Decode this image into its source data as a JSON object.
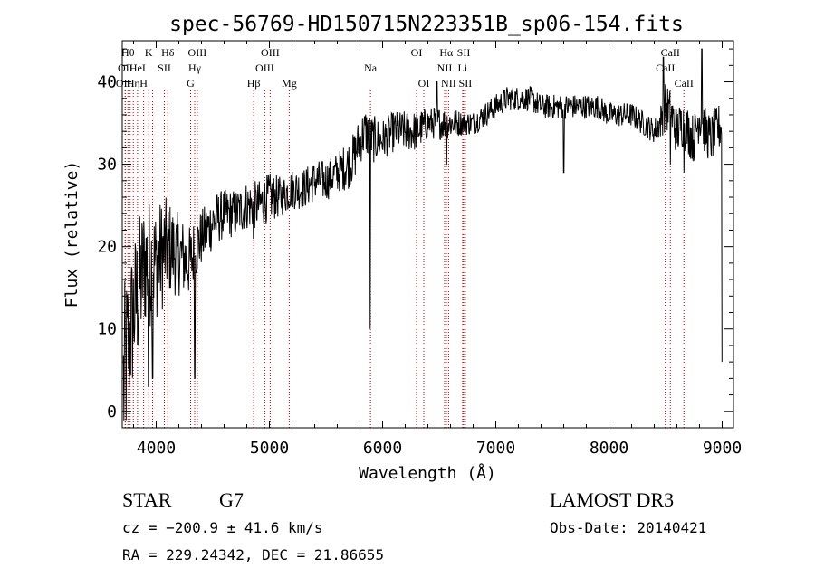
{
  "chart_data": {
    "type": "line",
    "title": "spec-56769-HD150715N223351B_sp06-154.fits",
    "xlabel": "Wavelength (Å)",
    "ylabel": "Flux (relative)",
    "xlim": [
      3700,
      9100
    ],
    "ylim": [
      -2,
      45
    ],
    "xticks": [
      4000,
      5000,
      6000,
      7000,
      8000,
      9000
    ],
    "xtick_labels": [
      "4000",
      "5000",
      "6000",
      "7000",
      "8000",
      "9000"
    ],
    "yticks": [
      0,
      10,
      20,
      30,
      40
    ],
    "ytick_labels": [
      "0",
      "10",
      "20",
      "30",
      "40"
    ],
    "series": [
      {
        "name": "flux",
        "anchors_x": [
          3710,
          3750,
          3800,
          3850,
          3900,
          3950,
          4000,
          4050,
          4100,
          4200,
          4300,
          4350,
          4400,
          4500,
          4600,
          4700,
          4800,
          4900,
          5000,
          5100,
          5200,
          5300,
          5400,
          5500,
          5600,
          5700,
          5750,
          5800,
          5850,
          5900,
          6000,
          6100,
          6200,
          6300,
          6400,
          6500,
          6600,
          6700,
          6800,
          6900,
          7000,
          7100,
          7200,
          7300,
          7400,
          7500,
          7600,
          7700,
          7800,
          7900,
          8000,
          8100,
          8200,
          8300,
          8400,
          8450,
          8500,
          8550,
          8600,
          8650,
          8700,
          8750,
          8800,
          8850,
          8900,
          8950,
          9000
        ],
        "anchors_y": [
          3,
          8,
          12,
          15,
          18,
          18,
          18,
          19,
          20,
          19,
          18,
          20,
          21,
          23,
          24,
          24,
          25,
          25,
          26,
          26,
          27,
          27,
          28,
          28,
          29,
          30,
          31,
          33,
          34,
          33,
          33,
          34,
          34,
          34,
          35,
          35,
          35,
          35,
          35,
          36,
          37,
          38,
          38,
          38,
          37,
          37,
          37,
          37,
          37,
          37,
          36,
          36,
          36,
          35,
          34,
          35,
          37,
          36,
          34,
          35,
          34,
          33,
          36,
          34,
          33,
          34,
          35
        ],
        "noise_amplitude": [
          12,
          10,
          9,
          9,
          8,
          8,
          7,
          7,
          6,
          5,
          4.5,
          4,
          3.5,
          3.5,
          3,
          3,
          3,
          3,
          3,
          2.5,
          2.5,
          2.5,
          2.5,
          2.5,
          2.5,
          3,
          3,
          3,
          3,
          3,
          2.5,
          2.5,
          2.5,
          2.5,
          2,
          2,
          2,
          1.5,
          1.5,
          1.5,
          1.5,
          1.5,
          1.5,
          1.5,
          1.5,
          1.5,
          1.5,
          1.5,
          1.5,
          1.5,
          1.5,
          1.5,
          1.5,
          1.5,
          1.5,
          2,
          3,
          3,
          3,
          3,
          3,
          3,
          3,
          3,
          3,
          3,
          3
        ],
        "dips": [
          {
            "x": 3933,
            "y": 3
          },
          {
            "x": 3968,
            "y": 4
          },
          {
            "x": 4340,
            "y": 4
          },
          {
            "x": 4861,
            "y": 21
          },
          {
            "x": 5890,
            "y": 10
          },
          {
            "x": 6563,
            "y": 30
          },
          {
            "x": 7600,
            "y": 29
          },
          {
            "x": 8542,
            "y": 30
          },
          {
            "x": 8662,
            "y": 29
          },
          {
            "x": 9000,
            "y": 6
          }
        ],
        "spikes": [
          {
            "x": 8480,
            "y": 43
          },
          {
            "x": 8820,
            "y": 44
          },
          {
            "x": 6480,
            "y": 40
          }
        ]
      }
    ],
    "lines": [
      {
        "x": 3750,
        "labels": [
          "Hθ"
        ],
        "row": 0
      },
      {
        "x": 3727,
        "labels": [
          "OII"
        ],
        "row": 1
      },
      {
        "x": 3726,
        "labels": [
          "OIII"
        ],
        "row": 2
      },
      {
        "x": 3770,
        "labels": [],
        "row": 2
      },
      {
        "x": 3798,
        "labels": [
          "Hη"
        ],
        "row": 2
      },
      {
        "x": 3835,
        "labels": [
          "HeI"
        ],
        "row": 1
      },
      {
        "x": 3889,
        "labels": [
          "H"
        ],
        "row": 2
      },
      {
        "x": 3934,
        "labels": [
          "K"
        ],
        "row": 0
      },
      {
        "x": 3968,
        "labels": [],
        "row": 0
      },
      {
        "x": 4072,
        "labels": [
          "SII"
        ],
        "row": 1
      },
      {
        "x": 4102,
        "labels": [
          "Hδ"
        ],
        "row": 0
      },
      {
        "x": 4304,
        "labels": [
          "G"
        ],
        "row": 2
      },
      {
        "x": 4340,
        "labels": [
          "Hγ"
        ],
        "row": 1
      },
      {
        "x": 4363,
        "labels": [
          "OIII"
        ],
        "row": 0
      },
      {
        "x": 4861,
        "labels": [
          "Hβ"
        ],
        "row": 2
      },
      {
        "x": 4959,
        "labels": [
          "OIII"
        ],
        "row": 1
      },
      {
        "x": 5007,
        "labels": [
          "OIII"
        ],
        "row": 0
      },
      {
        "x": 5175,
        "labels": [
          "Mg"
        ],
        "row": 2
      },
      {
        "x": 5893,
        "labels": [
          "Na"
        ],
        "row": 1
      },
      {
        "x": 6300,
        "labels": [
          "OI"
        ],
        "row": 0
      },
      {
        "x": 6364,
        "labels": [
          "OI"
        ],
        "row": 2
      },
      {
        "x": 6548,
        "labels": [
          "NII"
        ],
        "row": 1
      },
      {
        "x": 6563,
        "labels": [
          "Hα"
        ],
        "row": 0
      },
      {
        "x": 6583,
        "labels": [
          "NII"
        ],
        "row": 2
      },
      {
        "x": 6707,
        "labels": [
          "Li"
        ],
        "row": 1
      },
      {
        "x": 6716,
        "labels": [
          "SII"
        ],
        "row": 0
      },
      {
        "x": 6731,
        "labels": [
          "SII"
        ],
        "row": 2
      },
      {
        "x": 8498,
        "labels": [
          "CaII"
        ],
        "row": 1
      },
      {
        "x": 8542,
        "labels": [
          "CaII"
        ],
        "row": 0
      },
      {
        "x": 8662,
        "labels": [
          "CaII"
        ],
        "row": 2
      }
    ]
  },
  "info": {
    "object_class": "STAR",
    "subclass": "G7",
    "survey": "LAMOST DR3",
    "redshift": "cz = −200.9 ± 41.6 km/s",
    "obs_date": "Obs-Date: 20140421",
    "coords": "RA = 229.24342, DEC =  21.86655"
  }
}
